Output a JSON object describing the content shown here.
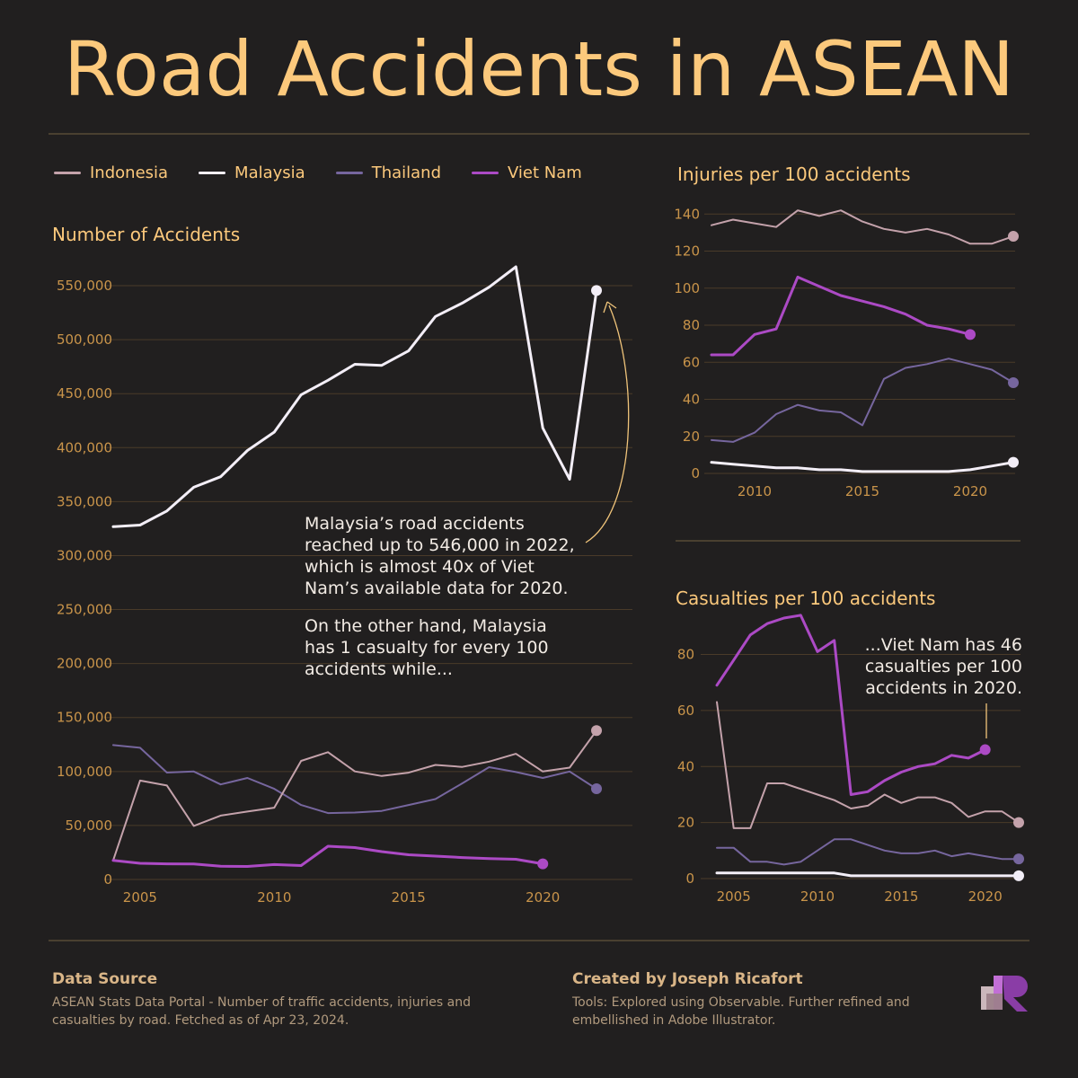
{
  "title": "Road Accidents in ASEAN",
  "legend": [
    {
      "name": "Indonesia",
      "color": "#c4a2ab"
    },
    {
      "name": "Malaysia",
      "color": "#f3eef7"
    },
    {
      "name": "Thailand",
      "color": "#76669e"
    },
    {
      "name": "Viet Nam",
      "color": "#ac4ac5"
    }
  ],
  "annotations": {
    "malaysia_1": [
      "Malaysia’s road accidents",
      "reached up to 546,000 in 2022,",
      "which is almost 40x of Viet",
      "Nam’s available data for 2020."
    ],
    "malaysia_2": [
      "On the other hand, Malaysia",
      "has 1 casualty for every 100",
      "accidents while..."
    ],
    "vietnam": [
      "...Viet Nam has 46",
      "casualties per 100",
      "accidents in 2020."
    ]
  },
  "footer": {
    "source_heading": "Data Source",
    "source_text": [
      "ASEAN Stats Data Portal - Number of traffic accidents, injuries and",
      "casualties by road. Fetched as of Apr 23, 2024."
    ],
    "credit_heading": "Created by Joseph Ricafort",
    "credit_text": [
      "Tools: Explored using Observable. Further refined and",
      "embellished in Adobe Illustrator."
    ]
  },
  "chart_data": [
    {
      "id": "accidents",
      "type": "line",
      "title": "Number of Accidents",
      "xlim": [
        2004,
        2022
      ],
      "ylim": [
        0,
        570000
      ],
      "xticks": [
        2005,
        2010,
        2015,
        2020
      ],
      "yticks": [
        0,
        50000,
        100000,
        150000,
        200000,
        250000,
        300000,
        350000,
        400000,
        450000,
        500000,
        550000
      ],
      "ytick_labels": [
        "0",
        "50,000",
        "100,000",
        "150,000",
        "200,000",
        "250,000",
        "300,000",
        "350,000",
        "400,000",
        "450,000",
        "500,000",
        "550,000"
      ],
      "series": [
        {
          "name": "Indonesia",
          "x": [
            2004,
            2005,
            2006,
            2007,
            2008,
            2009,
            2010,
            2011,
            2012,
            2013,
            2014,
            2015,
            2016,
            2017,
            2018,
            2019,
            2020,
            2021,
            2022
          ],
          "y": [
            17700,
            91600,
            87000,
            49600,
            59200,
            62900,
            66500,
            109800,
            117900,
            100100,
            95900,
            98900,
            106100,
            104300,
            109200,
            116400,
            100000,
            103600,
            137900
          ]
        },
        {
          "name": "Malaysia",
          "x": [
            2004,
            2005,
            2006,
            2007,
            2008,
            2009,
            2010,
            2011,
            2012,
            2013,
            2014,
            2015,
            2016,
            2017,
            2018,
            2019,
            2020,
            2021,
            2022
          ],
          "y": [
            326800,
            328300,
            341300,
            363300,
            373000,
            397300,
            414400,
            449000,
            462400,
            477200,
            476200,
            489600,
            521500,
            533900,
            548600,
            567500,
            418200,
            370700,
            545600
          ]
        },
        {
          "name": "Thailand",
          "x": [
            2004,
            2005,
            2006,
            2007,
            2008,
            2009,
            2010,
            2011,
            2012,
            2013,
            2014,
            2015,
            2016,
            2017,
            2018,
            2019,
            2020,
            2021,
            2022
          ],
          "y": [
            124500,
            122000,
            99000,
            100000,
            88000,
            94000,
            84000,
            69000,
            61500,
            62000,
            63500,
            69000,
            74500,
            89000,
            104000,
            99500,
            94000,
            100000,
            84000
          ]
        },
        {
          "name": "Viet Nam",
          "x": [
            2004,
            2005,
            2006,
            2007,
            2008,
            2009,
            2010,
            2011,
            2012,
            2013,
            2014,
            2015,
            2016,
            2017,
            2018,
            2019,
            2020
          ],
          "y": [
            17600,
            15000,
            14500,
            14400,
            12200,
            12100,
            13800,
            12900,
            30800,
            29500,
            25800,
            22900,
            21600,
            20300,
            19300,
            18700,
            14500
          ]
        }
      ]
    },
    {
      "id": "injuries",
      "type": "line",
      "title": "Injuries per 100 accidents",
      "xlim": [
        2008,
        2022
      ],
      "ylim": [
        0,
        145
      ],
      "xticks": [
        2010,
        2015,
        2020
      ],
      "yticks": [
        0,
        20,
        40,
        60,
        80,
        100,
        120,
        140
      ],
      "series": [
        {
          "name": "Indonesia",
          "x": [
            2008,
            2009,
            2010,
            2011,
            2012,
            2013,
            2014,
            2015,
            2016,
            2017,
            2018,
            2019,
            2020,
            2021,
            2022
          ],
          "y": [
            134,
            137,
            135,
            133,
            142,
            139,
            142,
            136,
            132,
            130,
            132,
            129,
            124,
            124,
            128
          ]
        },
        {
          "name": "Malaysia",
          "x": [
            2008,
            2009,
            2010,
            2011,
            2012,
            2013,
            2014,
            2015,
            2016,
            2017,
            2018,
            2019,
            2020,
            2021,
            2022
          ],
          "y": [
            6,
            5,
            4,
            3,
            3,
            2,
            2,
            1,
            1,
            1,
            1,
            1,
            2,
            4,
            6
          ]
        },
        {
          "name": "Thailand",
          "x": [
            2008,
            2009,
            2010,
            2011,
            2012,
            2013,
            2014,
            2015,
            2016,
            2017,
            2018,
            2019,
            2020,
            2021,
            2022
          ],
          "y": [
            18,
            17,
            22,
            32,
            37,
            34,
            33,
            26,
            51,
            57,
            59,
            62,
            59,
            56,
            49
          ]
        },
        {
          "name": "Viet Nam",
          "x": [
            2008,
            2009,
            2010,
            2011,
            2012,
            2013,
            2014,
            2015,
            2016,
            2017,
            2018,
            2019,
            2020
          ],
          "y": [
            64,
            64,
            75,
            78,
            106,
            101,
            96,
            93,
            90,
            86,
            80,
            78,
            75
          ]
        }
      ]
    },
    {
      "id": "casualties",
      "type": "line",
      "title": "Casualties per 100 accidents",
      "xlim": [
        2004,
        2022
      ],
      "ylim": [
        0,
        93
      ],
      "xticks": [
        2005,
        2010,
        2015,
        2020
      ],
      "yticks": [
        0,
        20,
        40,
        60,
        80
      ],
      "series": [
        {
          "name": "Indonesia",
          "x": [
            2004,
            2005,
            2006,
            2007,
            2008,
            2009,
            2010,
            2011,
            2012,
            2013,
            2014,
            2015,
            2016,
            2017,
            2018,
            2019,
            2020,
            2021,
            2022
          ],
          "y": [
            63,
            18,
            18,
            34,
            34,
            32,
            30,
            28,
            25,
            26,
            30,
            27,
            29,
            29,
            27,
            22,
            24,
            24,
            20
          ]
        },
        {
          "name": "Malaysia",
          "x": [
            2004,
            2005,
            2006,
            2007,
            2008,
            2009,
            2010,
            2011,
            2012,
            2013,
            2014,
            2015,
            2016,
            2017,
            2018,
            2019,
            2020,
            2021,
            2022
          ],
          "y": [
            2,
            2,
            2,
            2,
            2,
            2,
            2,
            2,
            1,
            1,
            1,
            1,
            1,
            1,
            1,
            1,
            1,
            1,
            1
          ]
        },
        {
          "name": "Thailand",
          "x": [
            2004,
            2005,
            2006,
            2007,
            2008,
            2009,
            2010,
            2011,
            2012,
            2013,
            2014,
            2015,
            2016,
            2017,
            2018,
            2019,
            2020,
            2021,
            2022
          ],
          "y": [
            11,
            11,
            6,
            6,
            5,
            6,
            10,
            14,
            14,
            12,
            10,
            9,
            9,
            10,
            8,
            9,
            8,
            7,
            7
          ]
        },
        {
          "name": "Viet Nam",
          "x": [
            2004,
            2005,
            2006,
            2007,
            2008,
            2009,
            2010,
            2011,
            2012,
            2013,
            2014,
            2015,
            2016,
            2017,
            2018,
            2019,
            2020
          ],
          "y": [
            69,
            78,
            87,
            91,
            93,
            94,
            81,
            85,
            30,
            31,
            35,
            38,
            40,
            41,
            44,
            43,
            46
          ]
        }
      ]
    }
  ]
}
